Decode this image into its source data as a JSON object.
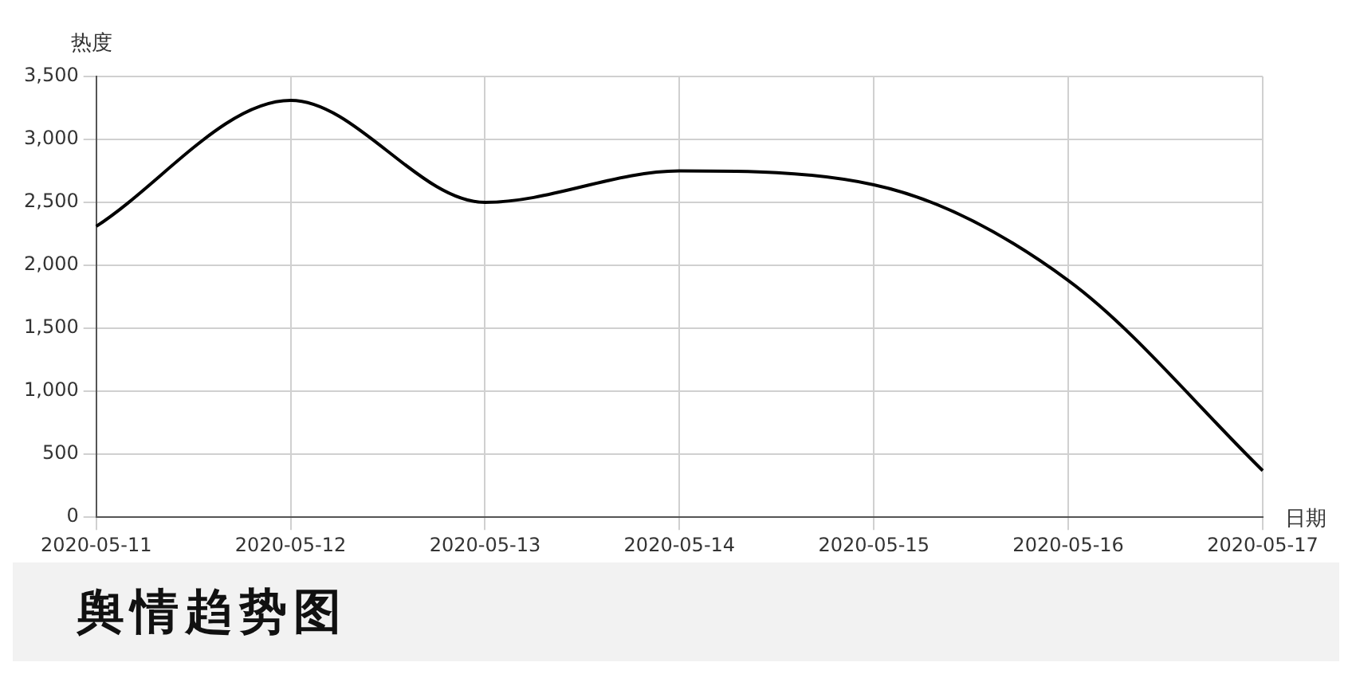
{
  "chart_data": {
    "type": "line",
    "title": "舆情趋势图",
    "xlabel": "日期",
    "ylabel": "热度",
    "categories": [
      "2020-05-11",
      "2020-05-12",
      "2020-05-13",
      "2020-05-14",
      "2020-05-15",
      "2020-05-16",
      "2020-05-17"
    ],
    "series": [
      {
        "color": "#000000",
        "values": [
          2310,
          3310,
          2500,
          2750,
          2640,
          1880,
          370
        ]
      }
    ],
    "ylim": [
      0,
      3500
    ],
    "yticks": [
      {
        "value": 0,
        "label": "0"
      },
      {
        "value": 500,
        "label": "500"
      },
      {
        "value": 1000,
        "label": "1,000"
      },
      {
        "value": 1500,
        "label": "1,500"
      },
      {
        "value": 2000,
        "label": "2,000"
      },
      {
        "value": 2500,
        "label": "2,500"
      },
      {
        "value": 3000,
        "label": "3,000"
      },
      {
        "value": 3500,
        "label": "3,500"
      }
    ],
    "grid": true,
    "marker": "none",
    "line_style": "solid"
  }
}
